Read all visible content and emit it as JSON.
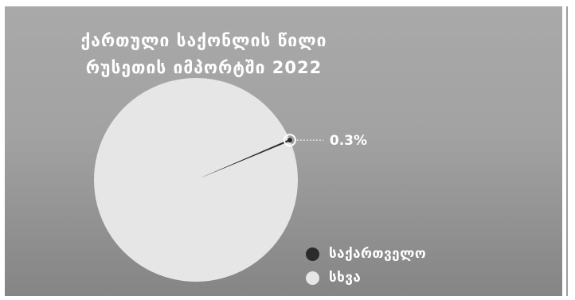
{
  "chart_data": {
    "type": "pie",
    "title_lines": [
      "ქართული საქონლის წილი",
      "რუსეთის იმპორტში 2022"
    ],
    "slices": [
      {
        "name": "საქართველო",
        "value": 0.3,
        "label": "0.3%",
        "color": "#2b2b2b"
      },
      {
        "name": "სხვა",
        "value": 99.7,
        "color": "#e6e6e6"
      }
    ],
    "legend_position": "bottom-right"
  }
}
